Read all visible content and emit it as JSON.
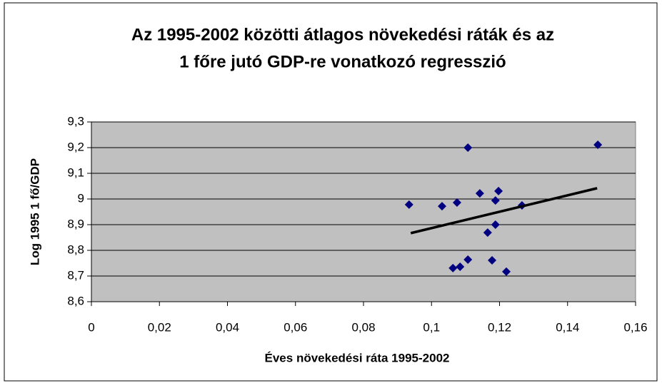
{
  "chart_data": {
    "type": "scatter",
    "title": [
      "Az 1995-2002  közötti átlagos növekedési ráták és az",
      "1 főre jutó GDP-re vonatkozó regresszió"
    ],
    "xlabel": "Éves növekedési ráta 1995-2002",
    "ylabel": "Log 1995 1 fő/GDP",
    "series": [
      {
        "color": "#000080",
        "marker": "diamond",
        "x": [
          0.0934,
          0.1107,
          0.1031,
          0.1075,
          0.1063,
          0.1084,
          0.1107,
          0.1142,
          0.1197,
          0.1188,
          0.1188,
          0.1165,
          0.1178,
          0.122,
          0.1266,
          0.1489
        ],
        "values": [
          8.978,
          9.2,
          8.972,
          8.986,
          8.731,
          8.736,
          8.764,
          9.022,
          9.031,
          8.994,
          8.9,
          8.869,
          8.761,
          8.717,
          8.975,
          9.211
        ]
      },
      {
        "color": "#000000",
        "marker": "line",
        "x": [
          0.0939,
          0.1487
        ],
        "values": [
          8.867,
          9.042
        ]
      }
    ],
    "xlim": [
      0,
      0.16
    ],
    "xticks": [
      0,
      {
        "value": 0.02,
        "label": "0,02"
      },
      {
        "value": 0.04,
        "label": "0,04"
      },
      {
        "value": 0.06,
        "label": "0,06"
      },
      {
        "value": 0.08,
        "label": "0,08"
      },
      {
        "value": 0.1,
        "label": "0,1"
      },
      {
        "value": 0.12,
        "label": "0,12"
      },
      {
        "value": 0.14,
        "label": "0,14"
      },
      {
        "value": 0.16,
        "label": "0,16"
      }
    ],
    "ylim": [
      8.6,
      9.3
    ],
    "yticks": [
      {
        "value": 8.6,
        "label": "8,6"
      },
      {
        "value": 8.7,
        "label": "8,7"
      },
      {
        "value": 8.8,
        "label": "8,8"
      },
      {
        "value": 8.9,
        "label": "8,9"
      },
      9,
      {
        "value": 9.1,
        "label": "9,1"
      },
      {
        "value": 9.2,
        "label": "9,2"
      },
      {
        "value": 9.3,
        "label": "9,3"
      }
    ],
    "grid": true,
    "plot_background": "#c0c0c0"
  }
}
